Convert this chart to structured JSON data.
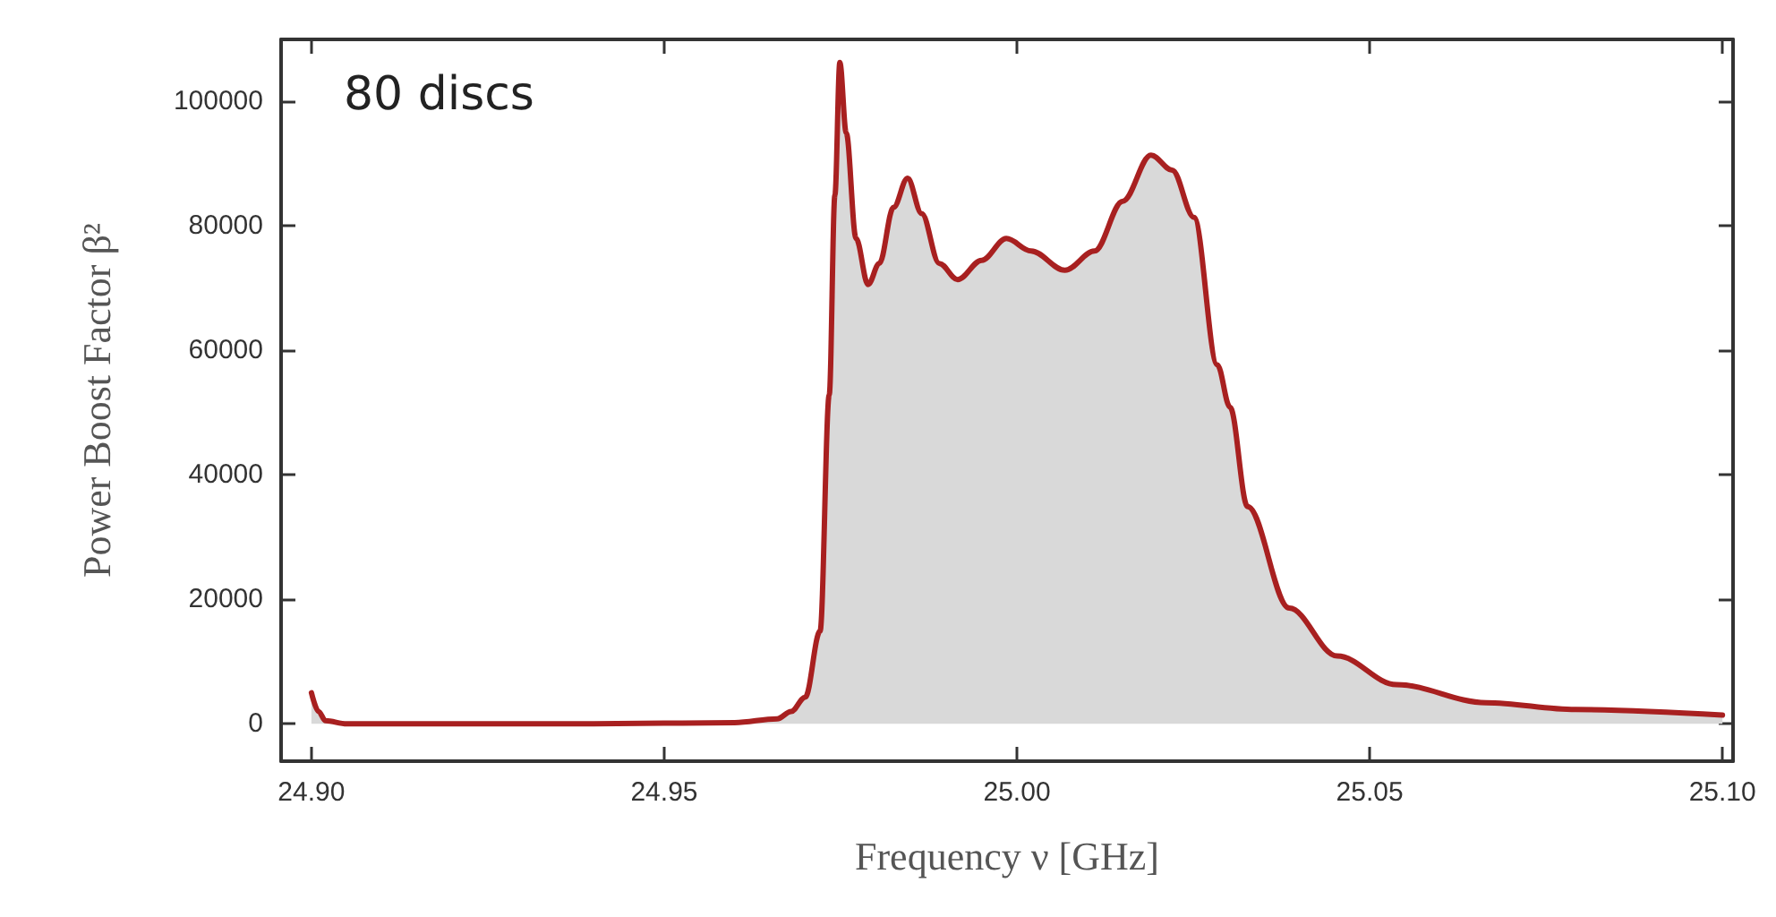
{
  "chart_data": {
    "type": "area",
    "xlabel": "Frequency ν [GHz]",
    "ylabel": "Power Boost Factor β²",
    "annotations": [
      "80 discs"
    ],
    "series": [
      {
        "color": "#a82020",
        "x": [
          24.9,
          24.901,
          24.902,
          24.905,
          24.92,
          24.94,
          24.96,
          24.966,
          24.968,
          24.97,
          24.9721,
          24.9734,
          24.9742,
          24.9749,
          24.9758,
          24.9772,
          24.9789,
          24.9805,
          24.9825,
          24.9845,
          24.9865,
          24.989,
          24.9916,
          24.995,
          24.9985,
          25.002,
          25.0068,
          25.011,
          25.015,
          25.019,
          25.022,
          25.0251,
          25.0284,
          25.0302,
          25.0327,
          25.0386,
          25.0454,
          25.0538,
          25.0665,
          25.0792,
          25.1
        ],
        "values": [
          5000,
          2000,
          500,
          0,
          0,
          0,
          200,
          800,
          2000,
          4300,
          14900,
          52900,
          85000,
          106300,
          95000,
          78000,
          70600,
          74000,
          83000,
          87700,
          82000,
          74000,
          71400,
          74500,
          78000,
          76000,
          72900,
          76000,
          84000,
          91400,
          89000,
          81400,
          57700,
          50900,
          34900,
          18600,
          10900,
          6300,
          3400,
          2300,
          1400
        ]
      }
    ],
    "xlim": [
      24.8957,
      25.1015
    ],
    "ylim": [
      -6000,
      110000
    ],
    "xticks": [
      {
        "value": 24.9,
        "label": "24.90"
      },
      {
        "value": 24.95,
        "label": "24.95"
      },
      {
        "value": 25.0,
        "label": "25.00"
      },
      {
        "value": 25.05,
        "label": "25.05"
      },
      {
        "value": 25.1,
        "label": "25.10"
      }
    ],
    "yticks": [
      0,
      20000,
      40000,
      60000,
      80000,
      100000
    ],
    "line_style": "solid"
  }
}
